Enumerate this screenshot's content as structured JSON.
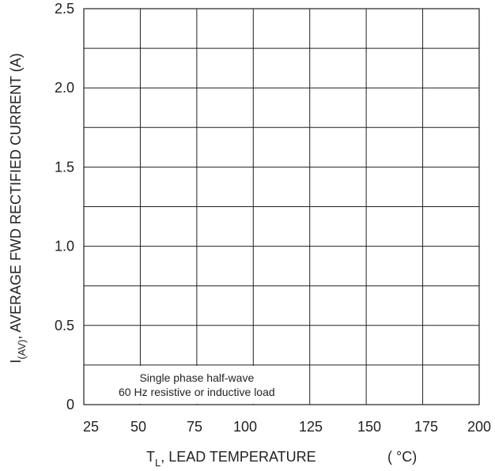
{
  "chart_data": {
    "type": "line",
    "title": "",
    "xlabel": {
      "main": "T",
      "sub": "L",
      "rest": ", LEAD TEMPERATURE",
      "unit": "( °C)"
    },
    "ylabel": {
      "main": "I",
      "sub": "(AV)",
      "rest": ", AVERAGE FWD RECTIFIED CURRENT (A)"
    },
    "xlim": [
      25,
      200
    ],
    "ylim": [
      0,
      2.5
    ],
    "x_ticks": [
      25,
      50,
      75,
      100,
      125,
      150,
      175,
      200
    ],
    "x_tick_labels": [
      "25",
      "50",
      "75",
      "100",
      "125",
      "150",
      "175",
      "200"
    ],
    "y_ticks": [
      0,
      0.5,
      1.0,
      1.5,
      2.0,
      2.5
    ],
    "y_tick_labels": [
      "0",
      "0.5",
      "1.0",
      "1.5",
      "2.0",
      "2.5"
    ],
    "grid": true,
    "series": [],
    "annotations": [
      "Single phase half-wave",
      "60 Hz resistive or inductive load"
    ]
  }
}
